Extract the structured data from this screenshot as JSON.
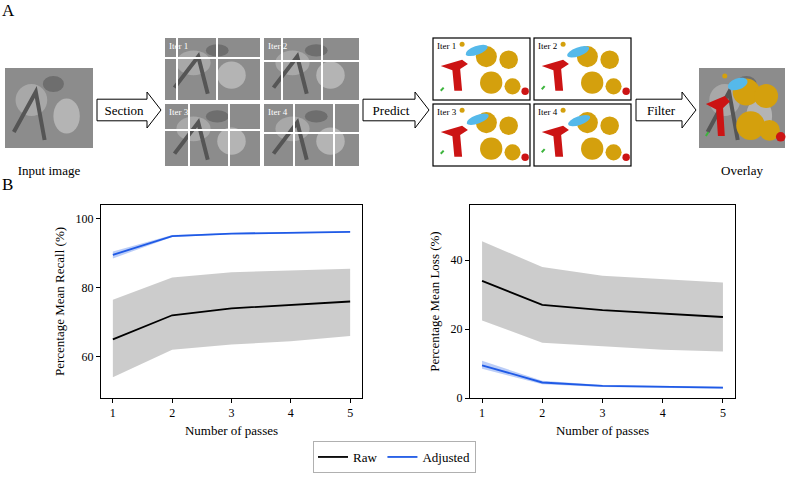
{
  "panel_labels": [
    "A",
    "B"
  ],
  "diagram": {
    "input_label": "Input image",
    "steps": [
      "Section",
      "Predict",
      "Filter"
    ],
    "output_label": "Overlay",
    "iterations": [
      "Iter 1",
      "Iter 2",
      "Iter 3",
      "Iter 4"
    ]
  },
  "chart_data": [
    {
      "type": "line",
      "xlabel": "Number of passes",
      "ylabel": "Percentage Mean Recall (%)",
      "x": [
        1,
        2,
        3,
        4,
        5
      ],
      "xlim": [
        0.8,
        5.2
      ],
      "xticks": [
        1,
        2,
        3,
        4,
        5
      ],
      "ylim": [
        48,
        104
      ],
      "yticks": [
        60,
        80,
        100
      ],
      "grid": false,
      "legend": "bottom",
      "series": [
        {
          "name": "Raw",
          "color": "#000000",
          "values": [
            65,
            72,
            74,
            75,
            76
          ],
          "lower": [
            54,
            62,
            63.5,
            64.5,
            66
          ],
          "upper": [
            76.5,
            83,
            84.5,
            85,
            85.5
          ]
        },
        {
          "name": "Adjusted",
          "color": "#1f5ae6",
          "values": [
            89.5,
            95,
            95.7,
            96,
            96.2
          ],
          "lower": [
            88.5,
            94.7,
            95.5,
            95.8,
            96
          ],
          "upper": [
            90.5,
            95.3,
            95.9,
            96.2,
            96.4
          ]
        }
      ]
    },
    {
      "type": "line",
      "xlabel": "Number of passes",
      "ylabel": "Percentage Mean Loss (%)",
      "x": [
        1,
        2,
        3,
        4,
        5
      ],
      "xlim": [
        0.8,
        5.2
      ],
      "xticks": [
        1,
        2,
        3,
        4,
        5
      ],
      "ylim": [
        0,
        56
      ],
      "yticks": [
        0,
        20,
        40
      ],
      "grid": false,
      "legend": "bottom",
      "series": [
        {
          "name": "Raw",
          "color": "#000000",
          "values": [
            34,
            27,
            25.5,
            24.5,
            23.5
          ],
          "lower": [
            22.5,
            16,
            15,
            14,
            13.5
          ],
          "upper": [
            45.5,
            38,
            35.5,
            34.5,
            33.5
          ]
        },
        {
          "name": "Adjusted",
          "color": "#1f5ae6",
          "values": [
            9.5,
            4.5,
            3.5,
            3.2,
            3
          ],
          "lower": [
            8.5,
            4,
            3.2,
            2.9,
            2.7
          ],
          "upper": [
            10.8,
            5,
            3.8,
            3.5,
            3.3
          ]
        }
      ]
    }
  ]
}
